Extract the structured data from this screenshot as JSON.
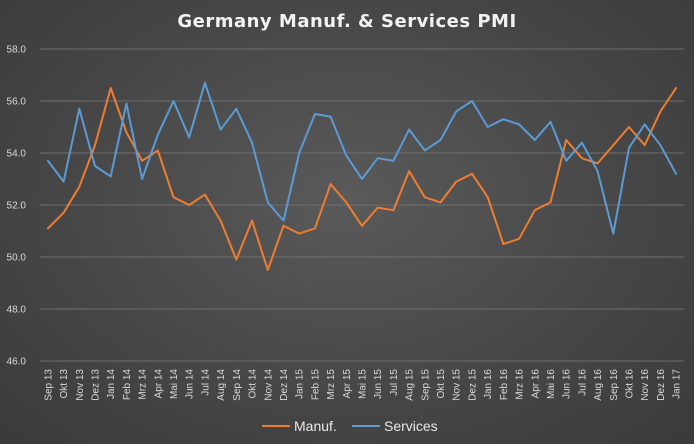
{
  "chart_data": {
    "type": "line",
    "title": "Germany Manuf. & Services PMI",
    "xlabel": "",
    "ylabel": "",
    "ylim": [
      46.0,
      58.0
    ],
    "yticks": [
      "46.0",
      "48.0",
      "50.0",
      "52.0",
      "54.0",
      "56.0",
      "58.0"
    ],
    "grid": true,
    "legend_position": "bottom-center",
    "categories": [
      "Sep 13",
      "Okt 13",
      "Nov 13",
      "Dez 13",
      "Jan 14",
      "Feb 14",
      "Mrz 14",
      "Apr 14",
      "Mai 14",
      "Jun 14",
      "Jul 14",
      "Aug 14",
      "Sep 14",
      "Okt 14",
      "Nov 14",
      "Dez 14",
      "Jan 15",
      "Feb 15",
      "Mrz 15",
      "Apr 15",
      "Mai 15",
      "Jun 15",
      "Jul 15",
      "Aug 15",
      "Sep 15",
      "Okt 15",
      "Nov 15",
      "Dez 15",
      "Jan 16",
      "Feb 16",
      "Mrz 16",
      "Apr 16",
      "Mai 16",
      "Jun 16",
      "Jul 16",
      "Aug 16",
      "Sep 16",
      "Okt 16",
      "Nov 16",
      "Dez 16",
      "Jan 17"
    ],
    "series": [
      {
        "name": "Manuf.",
        "color": "#ed7d31",
        "values": [
          51.1,
          51.7,
          52.7,
          54.3,
          56.5,
          54.8,
          53.7,
          54.1,
          52.3,
          52.0,
          52.4,
          51.4,
          49.9,
          51.4,
          49.5,
          51.2,
          50.9,
          51.1,
          52.8,
          52.1,
          51.2,
          51.9,
          51.8,
          53.3,
          52.3,
          52.1,
          52.9,
          53.2,
          52.3,
          50.5,
          50.7,
          51.8,
          52.1,
          54.5,
          53.8,
          53.6,
          54.3,
          55.0,
          54.3,
          55.6,
          56.5
        ]
      },
      {
        "name": "Services",
        "color": "#5b9bd5",
        "values": [
          53.7,
          52.9,
          55.7,
          53.5,
          53.1,
          55.9,
          53.0,
          54.7,
          56.0,
          54.6,
          56.7,
          54.9,
          55.7,
          54.4,
          52.1,
          51.4,
          54.0,
          55.5,
          55.4,
          53.9,
          53.0,
          53.8,
          53.7,
          54.9,
          54.1,
          54.5,
          55.6,
          56.0,
          55.0,
          55.3,
          55.1,
          54.5,
          55.2,
          53.7,
          54.4,
          53.3,
          50.9,
          54.2,
          55.1,
          54.3,
          53.2
        ]
      }
    ]
  }
}
